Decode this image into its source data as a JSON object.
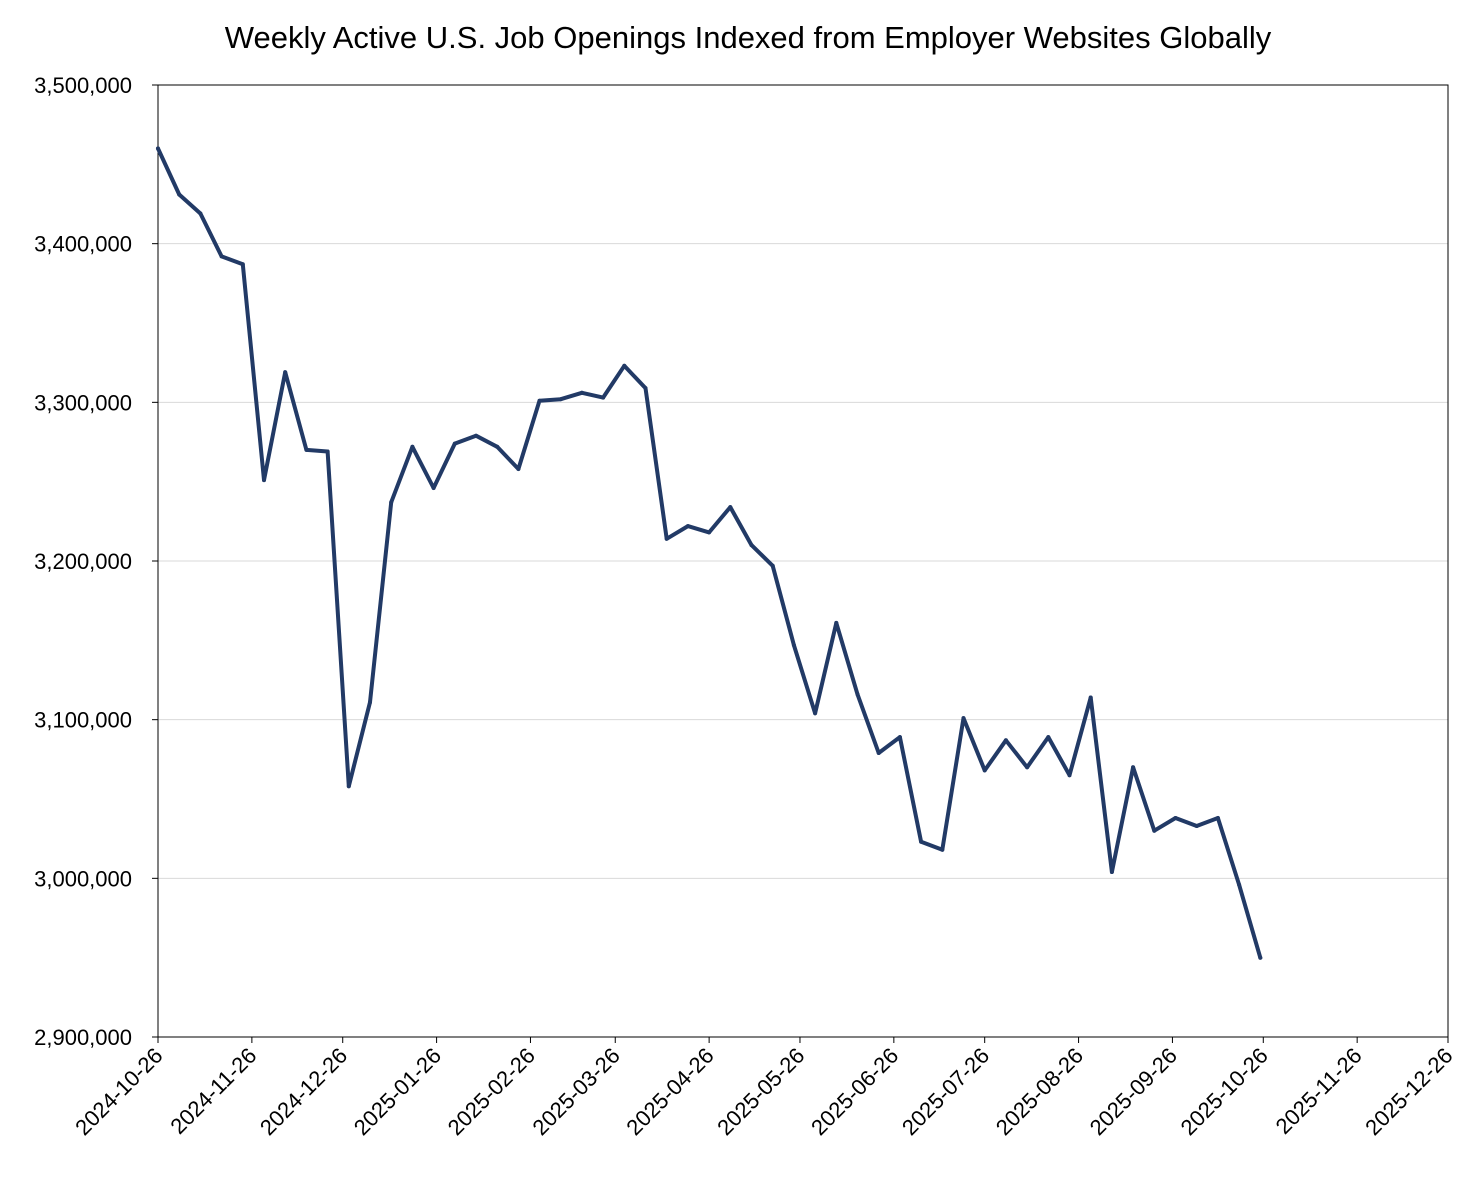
{
  "chart_data": {
    "type": "line",
    "title": "Weekly Active U.S. Job Openings Indexed from Employer Websites Globally",
    "xlabel": "",
    "ylabel": "",
    "ylim": [
      2900000,
      3500000
    ],
    "y_ticks": [
      2900000,
      3000000,
      3100000,
      3200000,
      3300000,
      3400000,
      3500000
    ],
    "y_tick_labels": [
      "2,900,000",
      "3,000,000",
      "3,100,000",
      "3,200,000",
      "3,300,000",
      "3,400,000",
      "3,500,000"
    ],
    "x_range": [
      "2024-10-26",
      "2025-12-26"
    ],
    "x_tick_labels": [
      "2024-10-26",
      "2024-11-26",
      "2024-12-26",
      "2025-01-26",
      "2025-02-26",
      "2025-03-26",
      "2025-04-26",
      "2025-05-26",
      "2025-06-26",
      "2025-07-26",
      "2025-08-26",
      "2025-09-26",
      "2025-10-26",
      "2025-11-26",
      "2025-12-26"
    ],
    "grid": "horizontal",
    "colors": {
      "line": "#223a66",
      "grid": "#d9d9d9",
      "axis": "#000000"
    },
    "series": [
      {
        "name": "Weekly Active U.S. Job Openings",
        "x": [
          "2024-10-26",
          "2024-11-02",
          "2024-11-09",
          "2024-11-16",
          "2024-11-23",
          "2024-11-30",
          "2024-12-07",
          "2024-12-14",
          "2024-12-21",
          "2024-12-28",
          "2025-01-04",
          "2025-01-11",
          "2025-01-18",
          "2025-01-25",
          "2025-02-01",
          "2025-02-08",
          "2025-02-15",
          "2025-02-22",
          "2025-03-01",
          "2025-03-08",
          "2025-03-15",
          "2025-03-22",
          "2025-03-29",
          "2025-04-05",
          "2025-04-12",
          "2025-04-19",
          "2025-04-26",
          "2025-05-03",
          "2025-05-10",
          "2025-05-17",
          "2025-05-24",
          "2025-05-31",
          "2025-06-07",
          "2025-06-14",
          "2025-06-21",
          "2025-06-28",
          "2025-07-05",
          "2025-07-12",
          "2025-07-19",
          "2025-07-26",
          "2025-08-02",
          "2025-08-09",
          "2025-08-16",
          "2025-08-23",
          "2025-08-30",
          "2025-09-06",
          "2025-09-13",
          "2025-09-20",
          "2025-09-27",
          "2025-10-04",
          "2025-10-11",
          "2025-10-18",
          "2025-10-25"
        ],
        "values": [
          3460000,
          3431000,
          3419000,
          3392000,
          3387000,
          3251000,
          3319000,
          3270000,
          3269000,
          3058000,
          3111000,
          3237000,
          3272000,
          3246000,
          3274000,
          3279000,
          3272000,
          3258000,
          3301000,
          3302000,
          3306000,
          3303000,
          3323000,
          3309000,
          3214000,
          3222000,
          3218000,
          3234000,
          3210000,
          3197000,
          3147000,
          3104000,
          3161000,
          3116000,
          3079000,
          3089000,
          3023000,
          3018000,
          3101000,
          3068000,
          3087000,
          3070000,
          3089000,
          3065000,
          3114000,
          3004000,
          3070000,
          3030000,
          3038000,
          3033000,
          3038000,
          2996000,
          2950000
        ]
      }
    ]
  }
}
